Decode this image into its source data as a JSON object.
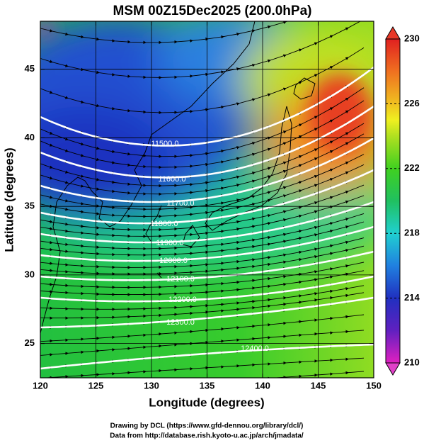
{
  "chart_data": {
    "type": "contour",
    "title": "MSM 00Z15Dec2025 (200.0hPa)",
    "x_label": "Longitude (degrees)",
    "y_label": "Latitude  (degrees)",
    "xlim": [
      120,
      150
    ],
    "ylim": [
      22.5,
      48.5
    ],
    "xticks": [
      120,
      125,
      130,
      135,
      140,
      145,
      150
    ],
    "yticks": [
      25,
      30,
      35,
      40,
      45
    ],
    "grid": true,
    "contours": {
      "color": "#ffffff",
      "levels": [
        {
          "value": 11500,
          "label": "11500.0"
        },
        {
          "value": 11600,
          "label": "11600.0"
        },
        {
          "value": 11700,
          "label": "11700.0"
        },
        {
          "value": 11800,
          "label": "11800.0"
        },
        {
          "value": 11900,
          "label": "11900.0"
        },
        {
          "value": 12000,
          "label": "12000.0"
        },
        {
          "value": 12100,
          "label": "12100.0"
        },
        {
          "value": 12200,
          "label": "12200.0"
        },
        {
          "value": 12300,
          "label": "12300.0"
        },
        {
          "value": 12400,
          "label": "12400.0"
        }
      ]
    },
    "colorbar": {
      "lim": [
        210,
        230
      ],
      "ticks": [
        210,
        214,
        218,
        222,
        226,
        230
      ]
    },
    "credits": [
      "Drawing by DCL (https://www.gfd-dennou.org/library/dcl/)",
      "Data from http://database.rish.kyoto-u.ac.jp/arch/jmadata/"
    ]
  }
}
